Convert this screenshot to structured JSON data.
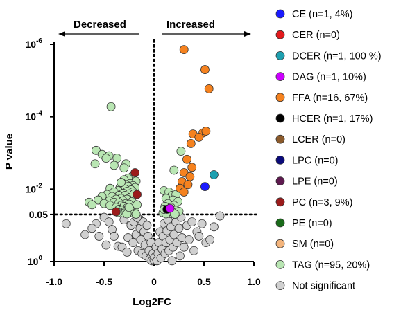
{
  "chart_data": {
    "type": "scatter",
    "title": "",
    "xlabel": "Log2FC",
    "ylabel": "P value",
    "xlim": [
      -1.0,
      1.0
    ],
    "y_scale": "log_p_inverted",
    "ylim": [
      1,
      1e-06
    ],
    "x_ticks": [
      "-1.0",
      "-0.5",
      "0",
      "0.5",
      "1.0"
    ],
    "x_tick_values": [
      -1.0,
      -0.5,
      0,
      0.5,
      1.0
    ],
    "y_ticks": [
      {
        "label": "10",
        "sup": "-6",
        "value": 1e-06
      },
      {
        "label": "10",
        "sup": "-4",
        "value": 0.0001
      },
      {
        "label": "10",
        "sup": "-2",
        "value": 0.01
      },
      {
        "label": "0.05",
        "sup": "",
        "value": 0.05
      },
      {
        "label": "10",
        "sup": "0",
        "value": 1
      }
    ],
    "threshold_p": 0.05,
    "vertical_line_x": 0,
    "annotations": {
      "decreased": "Decreased",
      "increased": "Increased"
    },
    "grid": false,
    "legend_position": "right",
    "colors": {
      "CE": "#1a1aff",
      "CER": "#e31a1c",
      "DCER": "#1ea0b0",
      "DAG": "#cc00ff",
      "FFA": "#f5821f",
      "HCER": "#000000",
      "LCER": "#8b5a2b",
      "LPC": "#0a0a7a",
      "LPE": "#5e1a4f",
      "PC": "#9b1b1b",
      "PE": "#1a6b1a",
      "SM": "#f3b47c",
      "TAG": "#b9e6b3",
      "NS": "#d0d0d0"
    },
    "legend": [
      {
        "key": "CE",
        "label": "CE (n=1, 4%)"
      },
      {
        "key": "CER",
        "label": "CER (n=0)"
      },
      {
        "key": "DCER",
        "label": "DCER (n=1, 100 %)"
      },
      {
        "key": "DAG",
        "label": "DAG (n=1, 10%)"
      },
      {
        "key": "FFA",
        "label": "FFA (n=16, 67%)"
      },
      {
        "key": "HCER",
        "label": "HCER (n=1, 17%)"
      },
      {
        "key": "LCER",
        "label": "LCER (n=0)"
      },
      {
        "key": "LPC",
        "label": "LPC (n=0)"
      },
      {
        "key": "LPE",
        "label": "LPE (n=0)"
      },
      {
        "key": "PC",
        "label": "PC (n=3, 9%)"
      },
      {
        "key": "PE",
        "label": "PE (n=0)"
      },
      {
        "key": "SM",
        "label": "SM (n=0)"
      },
      {
        "key": "TAG",
        "label": "TAG (n=95, 20%)"
      },
      {
        "key": "NS",
        "label": "Not significant"
      }
    ],
    "series": [
      {
        "key": "CE",
        "points": [
          [
            0.51,
            0.0085
          ]
        ]
      },
      {
        "key": "DCER",
        "points": [
          [
            0.6,
            0.004
          ]
        ]
      },
      {
        "key": "DAG",
        "points": [
          [
            0.16,
            0.034
          ]
        ]
      },
      {
        "key": "HCER",
        "points": [
          [
            0.13,
            0.036
          ]
        ]
      },
      {
        "key": "PC",
        "points": [
          [
            -0.19,
            0.0035
          ],
          [
            -0.17,
            0.014
          ],
          [
            -0.38,
            0.042
          ]
        ]
      },
      {
        "key": "FFA",
        "points": [
          [
            0.3,
            1.4e-06
          ],
          [
            0.51,
            5e-06
          ],
          [
            0.55,
            1.7e-05
          ],
          [
            0.39,
            0.0003
          ],
          [
            0.49,
            0.00028
          ],
          [
            0.52,
            0.00025
          ],
          [
            0.45,
            0.00037
          ],
          [
            0.37,
            0.00055
          ],
          [
            0.33,
            0.0015
          ],
          [
            0.38,
            0.0025
          ],
          [
            0.3,
            0.0035
          ],
          [
            0.36,
            0.0045
          ],
          [
            0.28,
            0.0062
          ],
          [
            0.34,
            0.0075
          ],
          [
            0.26,
            0.0095
          ],
          [
            0.3,
            0.012
          ]
        ]
      },
      {
        "key": "TAG",
        "points": [
          [
            -0.43,
            5.3e-05
          ],
          [
            -0.58,
            0.00085
          ],
          [
            -0.52,
            0.0011
          ],
          [
            -0.45,
            0.0012
          ],
          [
            -0.37,
            0.0014
          ],
          [
            -0.48,
            0.0014
          ],
          [
            -0.28,
            0.002
          ],
          [
            -0.59,
            0.002
          ],
          [
            -0.4,
            0.0022
          ],
          [
            -0.3,
            0.0026
          ],
          [
            0.27,
            0.0009
          ],
          [
            0.2,
            0.003
          ],
          [
            -0.22,
            0.0045
          ],
          [
            -0.26,
            0.005
          ],
          [
            -0.3,
            0.0055
          ],
          [
            -0.18,
            0.006
          ],
          [
            -0.32,
            0.0068
          ],
          [
            -0.24,
            0.007
          ],
          [
            -0.28,
            0.0075
          ],
          [
            -0.21,
            0.008
          ],
          [
            -0.26,
            0.0085
          ],
          [
            -0.34,
            0.009
          ],
          [
            -0.19,
            0.009
          ],
          [
            -0.44,
            0.0095
          ],
          [
            -0.29,
            0.01
          ],
          [
            -0.23,
            0.0105
          ],
          [
            -0.36,
            0.011
          ],
          [
            -0.27,
            0.0115
          ],
          [
            -0.4,
            0.012
          ],
          [
            -0.21,
            0.012
          ],
          [
            -0.31,
            0.013
          ],
          [
            -0.25,
            0.0135
          ],
          [
            -0.47,
            0.014
          ],
          [
            -0.35,
            0.015
          ],
          [
            -0.29,
            0.015
          ],
          [
            -0.52,
            0.016
          ],
          [
            -0.42,
            0.016
          ],
          [
            -0.24,
            0.017
          ],
          [
            -0.33,
            0.018
          ],
          [
            -0.38,
            0.019
          ],
          [
            -0.27,
            0.019
          ],
          [
            -0.56,
            0.02
          ],
          [
            -0.45,
            0.021
          ],
          [
            -0.31,
            0.021
          ],
          [
            -0.22,
            0.022
          ],
          [
            -0.65,
            0.023
          ],
          [
            -0.4,
            0.023
          ],
          [
            -0.35,
            0.024
          ],
          [
            -0.5,
            0.025
          ],
          [
            -0.28,
            0.025
          ],
          [
            -0.25,
            0.026
          ],
          [
            -0.62,
            0.027
          ],
          [
            -0.44,
            0.028
          ],
          [
            -0.33,
            0.028
          ],
          [
            -0.3,
            0.03
          ],
          [
            -0.21,
            0.031
          ],
          [
            -0.38,
            0.032
          ],
          [
            -0.27,
            0.033
          ],
          [
            -0.23,
            0.035
          ],
          [
            -0.35,
            0.036
          ],
          [
            -0.19,
            0.037
          ],
          [
            -0.32,
            0.038
          ],
          [
            -0.26,
            0.039
          ],
          [
            -0.29,
            0.041
          ],
          [
            -0.22,
            0.043
          ],
          [
            -0.24,
            0.045
          ],
          [
            -0.2,
            0.047
          ],
          [
            -0.3,
            0.046
          ],
          [
            -0.27,
            0.048
          ],
          [
            -0.18,
            0.049
          ],
          [
            0.1,
            0.011
          ],
          [
            0.15,
            0.012
          ],
          [
            0.18,
            0.015
          ],
          [
            0.22,
            0.014
          ],
          [
            0.12,
            0.018
          ],
          [
            0.19,
            0.02
          ],
          [
            0.14,
            0.025
          ],
          [
            0.24,
            0.022
          ],
          [
            0.11,
            0.03
          ],
          [
            0.2,
            0.028
          ],
          [
            0.17,
            0.032
          ],
          [
            0.13,
            0.04
          ],
          [
            0.22,
            0.038
          ],
          [
            0.09,
            0.045
          ],
          [
            0.16,
            0.047
          ],
          [
            0.19,
            0.044
          ],
          [
            0.25,
            0.041
          ],
          [
            0.12,
            0.048
          ],
          [
            0.21,
            0.049
          ],
          [
            0.1,
            0.036
          ],
          [
            -0.33,
            0.0065
          ],
          [
            -0.2,
            0.0135
          ],
          [
            -0.25,
            0.032
          ],
          [
            -0.17,
            0.027
          ],
          [
            -0.36,
            0.044
          ]
        ]
      },
      {
        "key": "NS",
        "points": [
          [
            -0.88,
            0.09
          ],
          [
            -0.69,
            0.18
          ],
          [
            -0.58,
            0.09
          ],
          [
            -0.55,
            0.2
          ],
          [
            -0.5,
            0.06
          ],
          [
            -0.48,
            0.35
          ],
          [
            -0.42,
            0.13
          ],
          [
            -0.36,
            0.38
          ],
          [
            -0.32,
            0.4
          ],
          [
            -0.3,
            0.07
          ],
          [
            -0.26,
            0.22
          ],
          [
            -0.23,
            0.1
          ],
          [
            -0.2,
            0.08
          ],
          [
            -0.21,
            0.3
          ],
          [
            -0.18,
            0.18
          ],
          [
            -0.16,
            0.5
          ],
          [
            -0.15,
            0.065
          ],
          [
            -0.14,
            0.12
          ],
          [
            -0.13,
            0.25
          ],
          [
            -0.12,
            0.6
          ],
          [
            -0.11,
            0.08
          ],
          [
            -0.1,
            0.15
          ],
          [
            -0.09,
            0.35
          ],
          [
            -0.08,
            0.7
          ],
          [
            -0.07,
            0.1
          ],
          [
            -0.06,
            0.2
          ],
          [
            -0.05,
            0.5
          ],
          [
            -0.04,
            0.85
          ],
          [
            -0.03,
            0.3
          ],
          [
            -0.02,
            0.95
          ],
          [
            -0.01,
            0.6
          ],
          [
            0.0,
            0.9
          ],
          [
            0.01,
            0.75
          ],
          [
            0.02,
            0.4
          ],
          [
            0.03,
            0.95
          ],
          [
            0.04,
            0.6
          ],
          [
            0.05,
            0.3
          ],
          [
            0.06,
            0.15
          ],
          [
            0.07,
            0.8
          ],
          [
            0.08,
            0.45
          ],
          [
            0.09,
            0.2
          ],
          [
            0.1,
            0.09
          ],
          [
            0.11,
            0.6
          ],
          [
            0.12,
            0.3
          ],
          [
            0.13,
            0.14
          ],
          [
            0.14,
            0.07
          ],
          [
            0.15,
            0.5
          ],
          [
            0.16,
            0.25
          ],
          [
            0.17,
            0.11
          ],
          [
            0.18,
            0.95
          ],
          [
            0.19,
            0.4
          ],
          [
            0.2,
            0.18
          ],
          [
            0.22,
            0.08
          ],
          [
            0.23,
            0.3
          ],
          [
            0.25,
            0.12
          ],
          [
            0.27,
            0.06
          ],
          [
            0.28,
            0.22
          ],
          [
            0.3,
            0.4
          ],
          [
            0.33,
            0.1
          ],
          [
            0.35,
            0.25
          ],
          [
            0.38,
            0.08
          ],
          [
            0.4,
            0.5
          ],
          [
            0.43,
            0.15
          ],
          [
            0.48,
            0.09
          ],
          [
            0.52,
            0.3
          ],
          [
            0.56,
            0.25
          ],
          [
            0.6,
            0.11
          ],
          [
            0.66,
            0.055
          ],
          [
            -0.62,
            0.12
          ],
          [
            -0.4,
            0.2
          ],
          [
            -0.27,
            0.55
          ],
          [
            -0.17,
            0.06
          ],
          [
            0.26,
            0.7
          ],
          [
            0.45,
            0.2
          ],
          [
            -0.45,
            0.08
          ]
        ]
      }
    ]
  }
}
